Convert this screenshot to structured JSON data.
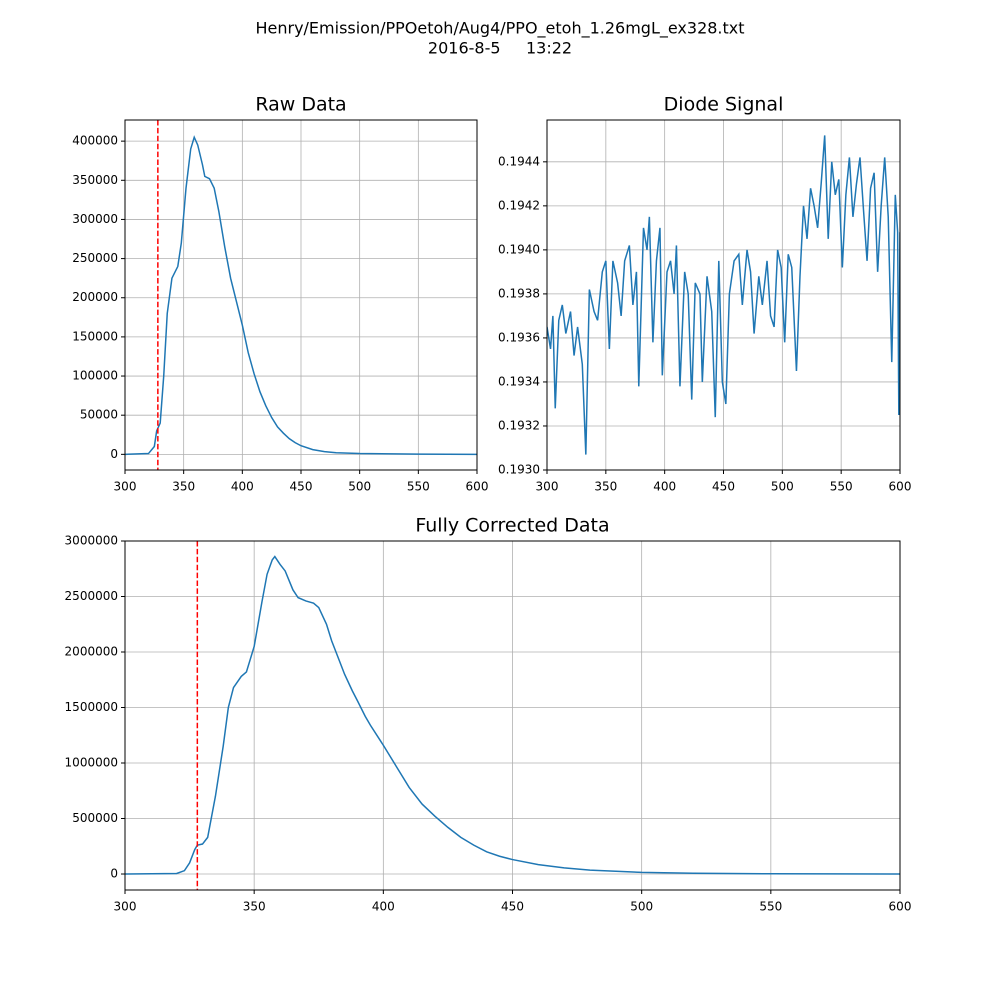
{
  "suptitle": [
    "Henry/Emission/PPOetoh/Aug4/PPO_etoh_1.26mgL_ex328.txt",
    "2016-8-5     13:22"
  ],
  "chart_data": [
    {
      "type": "line",
      "title": "Raw Data",
      "grid": true,
      "xlim": [
        300,
        600
      ],
      "xticks": [
        300,
        350,
        400,
        450,
        500,
        550,
        600
      ],
      "ylim": [
        -20000,
        427000
      ],
      "yticks": [
        0,
        50000,
        100000,
        150000,
        200000,
        250000,
        300000,
        350000,
        400000
      ],
      "vline": {
        "x": 328,
        "color": "#ff0000",
        "style": "dashed"
      },
      "x": [
        300,
        320,
        325,
        327,
        330,
        333,
        336,
        340,
        345,
        348,
        352,
        356,
        359,
        362,
        366,
        368,
        372,
        376,
        380,
        385,
        390,
        395,
        400,
        405,
        410,
        415,
        420,
        425,
        430,
        435,
        440,
        445,
        450,
        460,
        470,
        480,
        500,
        550,
        600
      ],
      "series": [
        {
          "color": "#1f77b4",
          "values": [
            0,
            1000,
            10000,
            30000,
            40000,
            100000,
            180000,
            225000,
            240000,
            270000,
            340000,
            390000,
            405000,
            395000,
            370000,
            355000,
            352000,
            340000,
            310000,
            265000,
            225000,
            195000,
            165000,
            130000,
            103000,
            80000,
            62000,
            47000,
            35000,
            27000,
            20000,
            15000,
            11000,
            6000,
            3500,
            2000,
            1000,
            300,
            0
          ]
        }
      ]
    },
    {
      "type": "line",
      "title": "Diode Signal",
      "grid": true,
      "xlim": [
        300,
        600
      ],
      "xticks": [
        300,
        350,
        400,
        450,
        500,
        550,
        600
      ],
      "ylim": [
        0.193,
        0.19459
      ],
      "yticks": [
        {
          "value": 0.193,
          "label": "0.1930"
        },
        0.1932,
        0.1934,
        0.1936,
        0.1938,
        {
          "value": 0.194,
          "label": "0.1940"
        },
        0.1942,
        0.1944
      ],
      "x": [
        300,
        303,
        305,
        307,
        310,
        313,
        316,
        320,
        323,
        326,
        330,
        333,
        336,
        340,
        343,
        347,
        350,
        353,
        356,
        360,
        363,
        366,
        370,
        373,
        376,
        378,
        382,
        385,
        387,
        390,
        393,
        396,
        398,
        402,
        405,
        408,
        410,
        413,
        417,
        420,
        423,
        426,
        430,
        432,
        436,
        440,
        443,
        446,
        449,
        452,
        455,
        459,
        463,
        466,
        470,
        473,
        476,
        480,
        483,
        487,
        490,
        493,
        496,
        499,
        502,
        505,
        508,
        512,
        515,
        518,
        521,
        524,
        527,
        530,
        533,
        536,
        539,
        542,
        545,
        548,
        551,
        554,
        557,
        560,
        563,
        566,
        569,
        572,
        575,
        578,
        581,
        584,
        587,
        590,
        593,
        596,
        598,
        599,
        600
      ],
      "series": [
        {
          "color": "#1f77b4",
          "values": [
            0.19365,
            0.19355,
            0.1937,
            0.19328,
            0.19368,
            0.19375,
            0.19362,
            0.19372,
            0.19352,
            0.19365,
            0.19348,
            0.19307,
            0.19382,
            0.19372,
            0.19368,
            0.1939,
            0.19395,
            0.19355,
            0.19395,
            0.19385,
            0.1937,
            0.19395,
            0.19402,
            0.19375,
            0.1939,
            0.19338,
            0.1941,
            0.194,
            0.19415,
            0.19358,
            0.19395,
            0.1941,
            0.19343,
            0.1939,
            0.19395,
            0.1938,
            0.19402,
            0.19338,
            0.1939,
            0.1938,
            0.19332,
            0.19385,
            0.1938,
            0.1934,
            0.19388,
            0.19372,
            0.19324,
            0.19395,
            0.1934,
            0.1933,
            0.1938,
            0.19395,
            0.19398,
            0.19375,
            0.194,
            0.1939,
            0.19362,
            0.19388,
            0.19375,
            0.19395,
            0.1937,
            0.19365,
            0.194,
            0.19392,
            0.19358,
            0.19398,
            0.19392,
            0.19345,
            0.19388,
            0.1942,
            0.19405,
            0.19428,
            0.1942,
            0.1941,
            0.1943,
            0.19452,
            0.19405,
            0.1944,
            0.19425,
            0.19432,
            0.19392,
            0.19425,
            0.19442,
            0.19415,
            0.1943,
            0.19442,
            0.19418,
            0.19395,
            0.19428,
            0.19435,
            0.1939,
            0.1942,
            0.19442,
            0.19415,
            0.19349,
            0.19425,
            0.19408,
            0.19325,
            0.19408
          ]
        }
      ]
    },
    {
      "type": "line",
      "title": "Fully Corrected Data",
      "grid": true,
      "xlim": [
        300,
        600
      ],
      "xticks": [
        300,
        350,
        400,
        450,
        500,
        550,
        600
      ],
      "ylim": [
        -144000,
        3000000
      ],
      "yticks": [
        0,
        500000,
        1000000,
        1500000,
        2000000,
        2500000,
        3000000
      ],
      "vline": {
        "x": 328,
        "color": "#ff0000",
        "style": "dashed"
      },
      "x": [
        300,
        320,
        323,
        325,
        327,
        328,
        330,
        332,
        335,
        338,
        340,
        342,
        345,
        347,
        350,
        353,
        355,
        357,
        358,
        360,
        362,
        365,
        367,
        370,
        373,
        375,
        378,
        380,
        383,
        385,
        388,
        390,
        393,
        395,
        400,
        405,
        410,
        415,
        420,
        425,
        430,
        435,
        440,
        445,
        450,
        460,
        470,
        480,
        490,
        500,
        520,
        550,
        600
      ],
      "series": [
        {
          "color": "#1f77b4",
          "values": [
            0,
            5000,
            30000,
            100000,
            220000,
            260000,
            270000,
            330000,
            700000,
            1150000,
            1500000,
            1680000,
            1780000,
            1820000,
            2050000,
            2450000,
            2700000,
            2830000,
            2860000,
            2790000,
            2730000,
            2560000,
            2490000,
            2460000,
            2440000,
            2400000,
            2250000,
            2100000,
            1920000,
            1800000,
            1650000,
            1560000,
            1420000,
            1340000,
            1160000,
            970000,
            780000,
            630000,
            520000,
            420000,
            330000,
            260000,
            200000,
            160000,
            130000,
            85000,
            55000,
            35000,
            25000,
            15000,
            7000,
            2000,
            0
          ]
        }
      ]
    }
  ]
}
